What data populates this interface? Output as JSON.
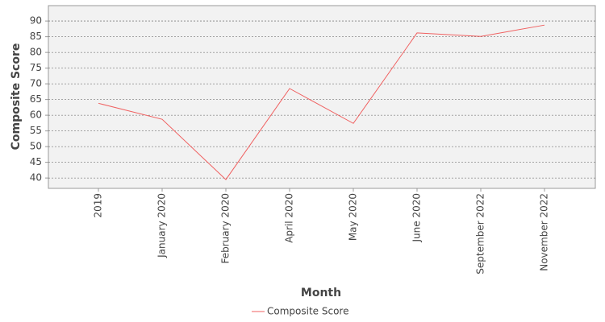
{
  "chart_data": {
    "type": "line",
    "x_label": "Month",
    "y_label": "Composite Score",
    "categories": [
      "2019",
      "January 2020",
      "February 2020",
      "April 2020",
      "May 2020",
      "June 2020",
      "September 2022",
      "November 2022"
    ],
    "series": [
      {
        "name": "Composite Score",
        "color": "#f06060",
        "values": [
          63.8,
          58.7,
          39.5,
          68.5,
          57.4,
          86.2,
          85.1,
          88.7
        ]
      }
    ],
    "ylim": [
      36.7,
      94.9
    ],
    "yticks": [
      40,
      45,
      50,
      55,
      60,
      65,
      70,
      75,
      80,
      85,
      90
    ],
    "grid": true
  }
}
